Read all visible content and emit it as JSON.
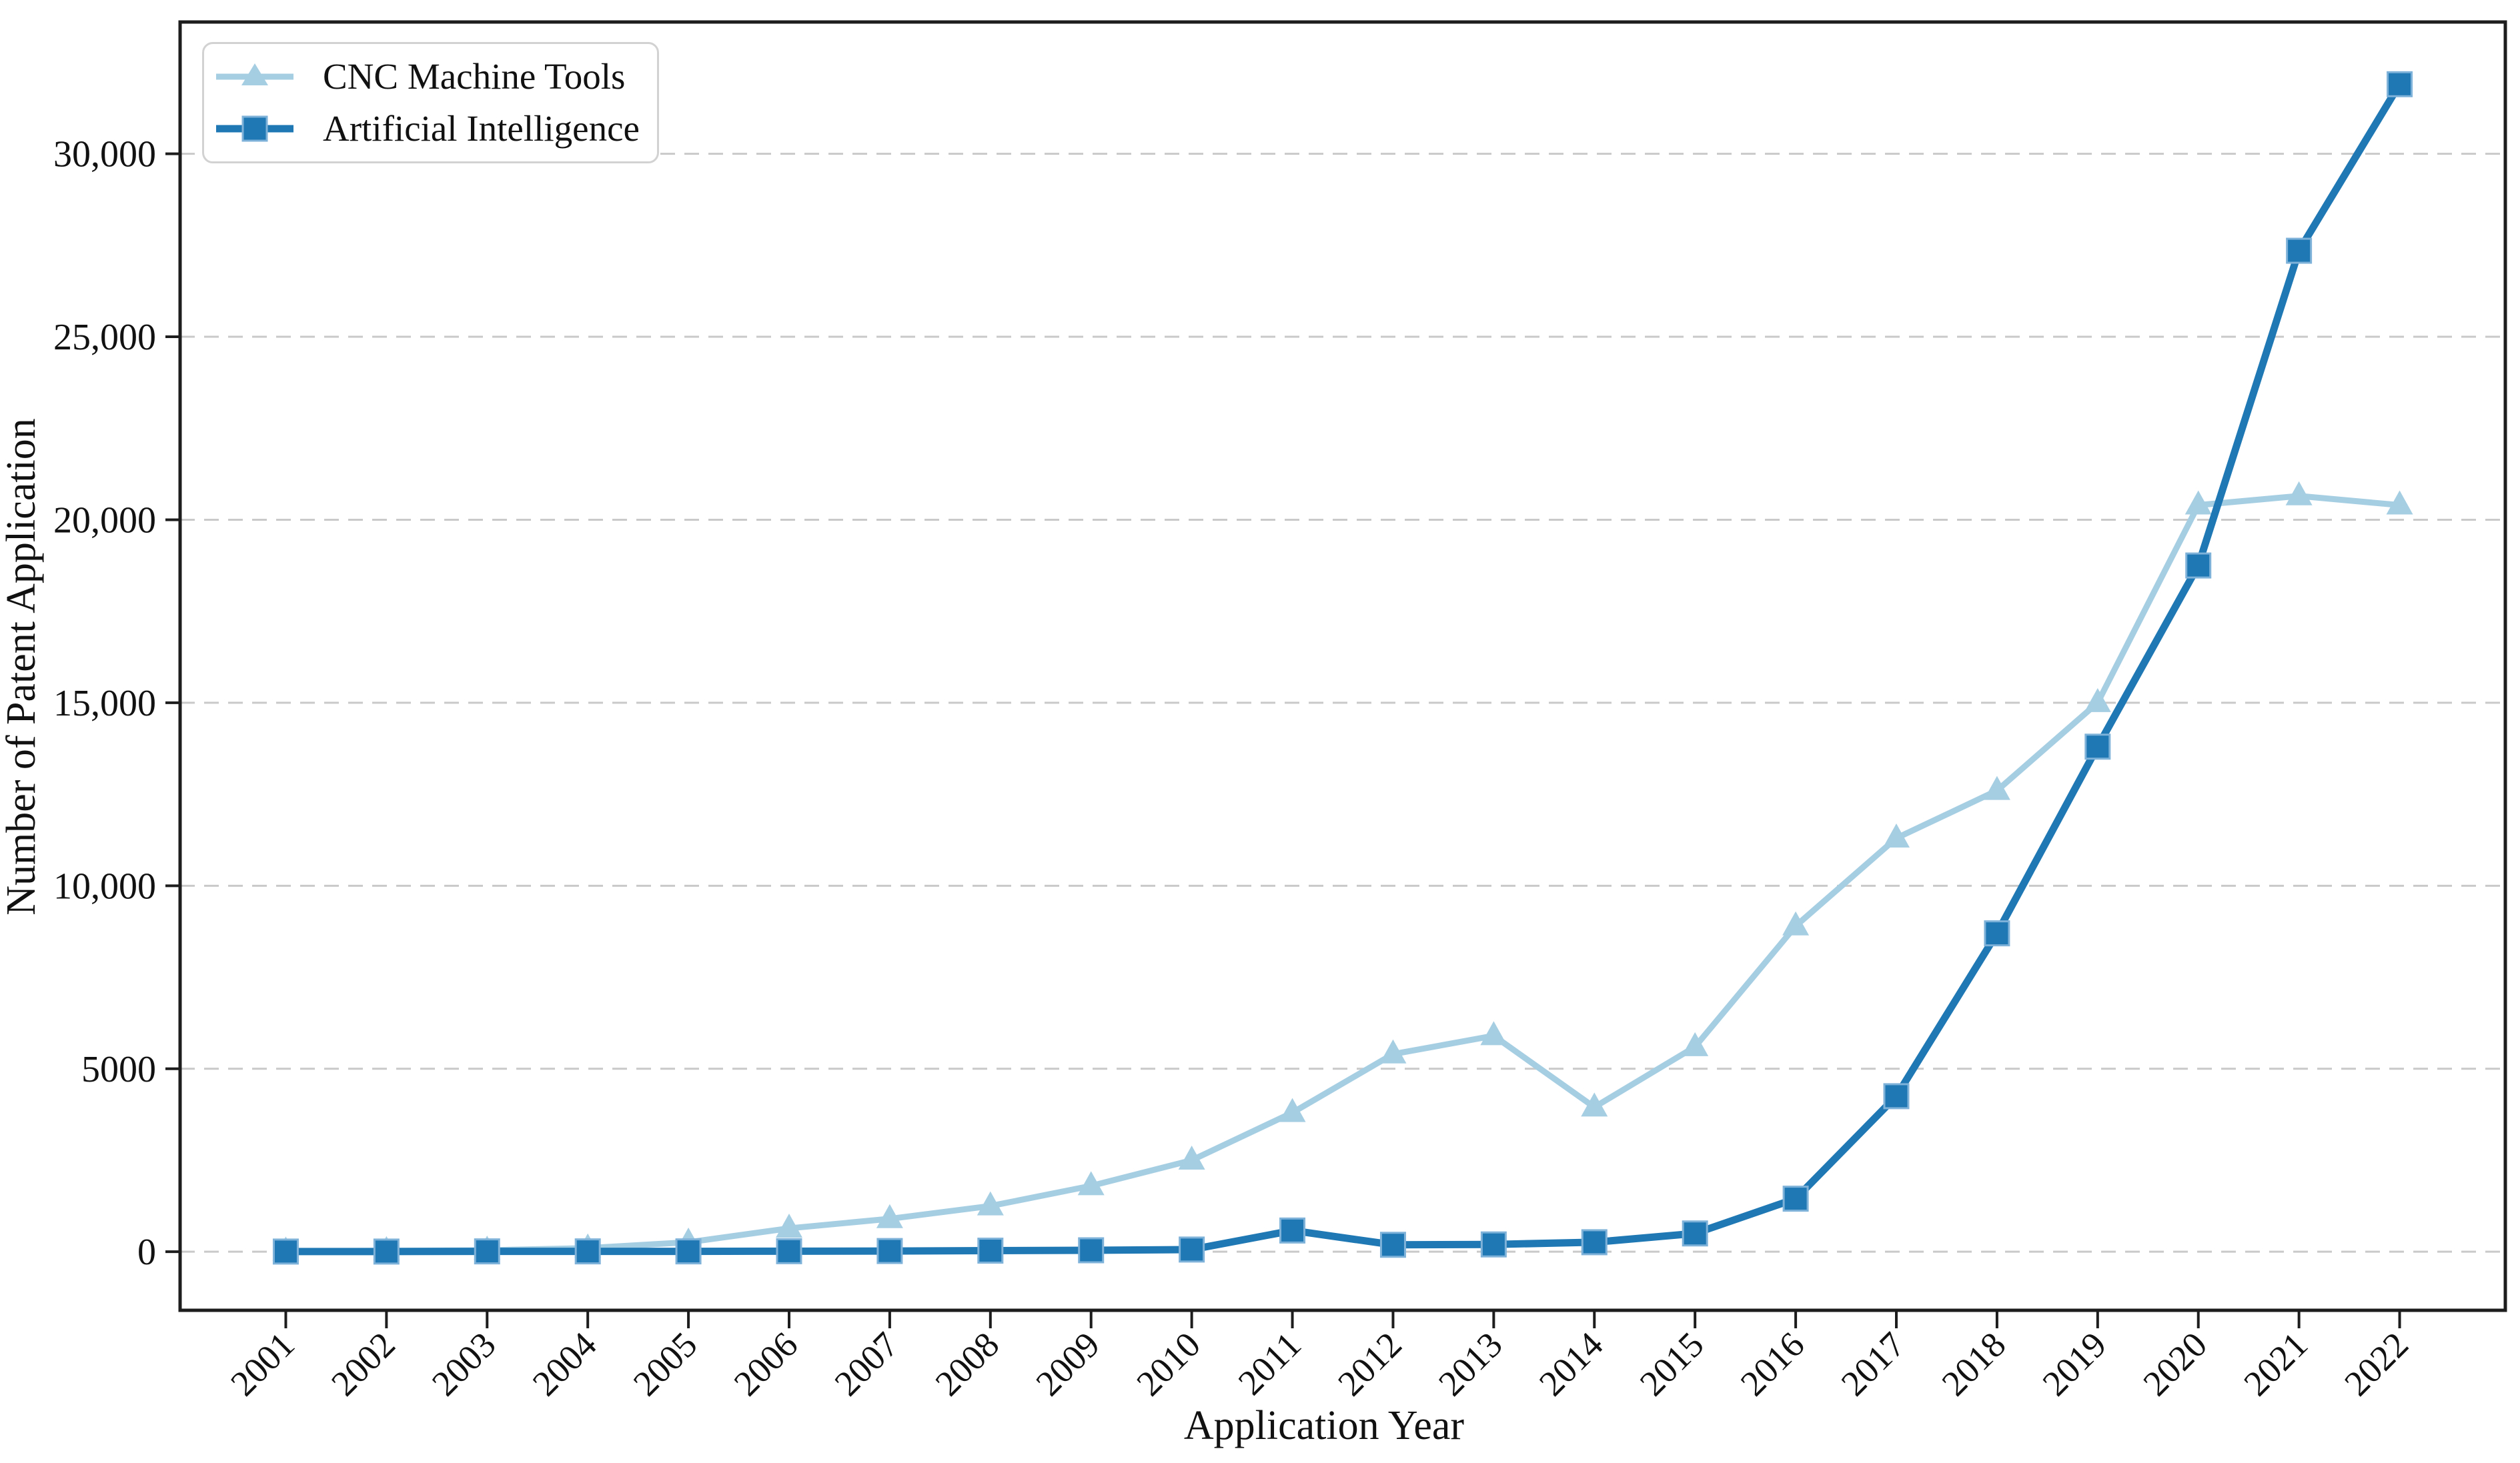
{
  "figure": {
    "background_color": "#ffffff",
    "spine_color": "#1d1d1d",
    "grid_color": "#c9c9c9",
    "text_color": "#111111"
  },
  "legend": {
    "position": "upper-left",
    "border_color": "#d2d2d2",
    "items": [
      {
        "label": "CNC Machine Tools",
        "marker": "triangle-icon",
        "color": "#a6cee3"
      },
      {
        "label": "Artificial Intelligence",
        "marker": "square-icon",
        "color": "#1f78b4"
      }
    ]
  },
  "chart_data": {
    "type": "line",
    "title": "",
    "xlabel": "Application Year",
    "ylabel": "Number of Patent Application",
    "x": [
      2001,
      2002,
      2003,
      2004,
      2005,
      2006,
      2007,
      2008,
      2009,
      2010,
      2011,
      2012,
      2013,
      2014,
      2015,
      2016,
      2017,
      2018,
      2019,
      2020,
      2021,
      2022
    ],
    "xtick_labels": [
      "2001",
      "2002",
      "2003",
      "2004",
      "2005",
      "2006",
      "2007",
      "2008",
      "2009",
      "2010",
      "2011",
      "2012",
      "2013",
      "2014",
      "2015",
      "2016",
      "2017",
      "2018",
      "2019",
      "2020",
      "2021",
      "2022"
    ],
    "series": [
      {
        "name": "CNC Machine Tools",
        "color": "#a6cee3",
        "marker": "triangle",
        "line_width": 9,
        "values": [
          15,
          25,
          40,
          100,
          260,
          640,
          900,
          1250,
          1800,
          2500,
          3800,
          5400,
          5900,
          3950,
          5600,
          8900,
          11300,
          12600,
          15000,
          20400,
          20650,
          20400
        ]
      },
      {
        "name": "Artificial Intelligence",
        "color": "#1f78b4",
        "marker": "square",
        "marker_edge_color": "#7fb2d9",
        "line_width": 11,
        "values": [
          5,
          5,
          10,
          10,
          10,
          15,
          20,
          30,
          40,
          60,
          580,
          190,
          200,
          260,
          500,
          1450,
          4250,
          8700,
          13800,
          18750,
          27350,
          31900
        ]
      }
    ],
    "ylim": [
      -1600,
      33600
    ],
    "xlim": [
      1999.95,
      2023.05
    ],
    "yticks": [
      0,
      5000,
      10000,
      15000,
      20000,
      25000,
      30000
    ],
    "ytick_labels": [
      "0",
      "5000",
      "10,000",
      "15,000",
      "20,000",
      "25,000",
      "30,000"
    ],
    "grid": "horizontal-dashed",
    "legend_position": "upper-left"
  }
}
